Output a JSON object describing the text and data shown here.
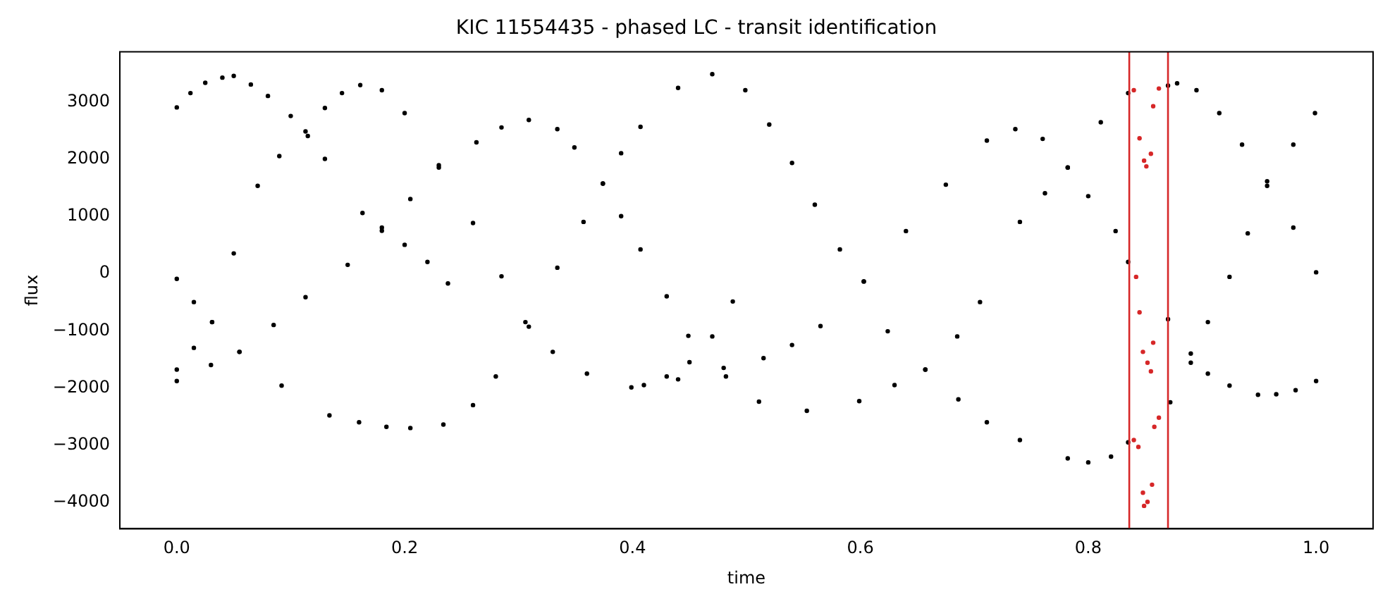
{
  "chart_data": {
    "type": "scatter",
    "title": "KIC 11554435 - phased LC - transit identification",
    "xlabel": "time",
    "ylabel": "flux",
    "xlim": [
      -0.05,
      1.05
    ],
    "ylim": [
      -4460,
      3870
    ],
    "xticks": [
      {
        "value": 0,
        "label": "0.0"
      },
      {
        "value": 0.2,
        "label": "0.2"
      },
      {
        "value": 0.4,
        "label": "0.4"
      },
      {
        "value": 0.6,
        "label": "0.6"
      },
      {
        "value": 0.8,
        "label": "0.8"
      },
      {
        "value": 1,
        "label": "1.0"
      }
    ],
    "yticks": [
      {
        "value": -4000,
        "label": "−4000"
      },
      {
        "value": -3000,
        "label": "−3000"
      },
      {
        "value": -2000,
        "label": "−2000"
      },
      {
        "value": -1000,
        "label": "−1000"
      },
      0,
      1000,
      2000,
      3000
    ],
    "marker": "circle",
    "grid": false,
    "legend": false,
    "ref_lines": [
      {
        "axis": "x",
        "value": 0.836,
        "color": "#d62728"
      },
      {
        "axis": "x",
        "value": 0.87,
        "color": "#d62728"
      }
    ],
    "series": [
      {
        "color": "#000000",
        "x": [
          0,
          0.012,
          0.025,
          0.04,
          0.05,
          0.065,
          0.08,
          0.1,
          0.115,
          0.13,
          0,
          0.015,
          0.031,
          0.05,
          0.071,
          0.09,
          0.113,
          0.13,
          0.145,
          0.161,
          0.18,
          0.2,
          0.23,
          0.26,
          0.285,
          0.306,
          0.33,
          0.36,
          0.399,
          0.44,
          0.48,
          0.515,
          0.54,
          0.565,
          0.603,
          0.64,
          0.675,
          0.711,
          0.736,
          0.76,
          0.782,
          0.8,
          0.824,
          0.835,
          0,
          0.03,
          0.055,
          0.085,
          0.113,
          0.15,
          0.18,
          0.205,
          0.23,
          0.263,
          0.285,
          0.309,
          0.334,
          0.349,
          0.374,
          0.39,
          0.407,
          0.43,
          0.449,
          0.482,
          0.511,
          0.553,
          0.599,
          0.63,
          0.657,
          0.685,
          0.705,
          0.74,
          0.762,
          0.782,
          0.811,
          0.835,
          0.163,
          0.18,
          0.2,
          0.22,
          0.238,
          0,
          0.015,
          0.031,
          0.055,
          0.092,
          0.134,
          0.16,
          0.184,
          0.205,
          0.234,
          0.26,
          0.28,
          0.309,
          0.334,
          0.357,
          0.374,
          0.39,
          0.407,
          0.44,
          0.47,
          0.499,
          0.52,
          0.54,
          0.56,
          0.582,
          0.603,
          0.624,
          0.657,
          0.686,
          0.711,
          0.74,
          0.782,
          0.8,
          0.82,
          0.835,
          0.41,
          0.43,
          0.45,
          0.47,
          0.488,
          0.87,
          0.878,
          0.895,
          0.915,
          0.935,
          0.957,
          0.98,
          1.0,
          0.872,
          0.89,
          0.905,
          0.924,
          0.94,
          0.957,
          0.98,
          0.999,
          0.87,
          0.89,
          0.905,
          0.924,
          0.949,
          0.965,
          0.982,
          1.0
        ],
        "values": [
          2900,
          3150,
          3330,
          3420,
          3450,
          3300,
          3100,
          2750,
          2400,
          2000,
          -1680,
          -1300,
          -850,
          350,
          1530,
          2050,
          2480,
          2890,
          3150,
          3290,
          3200,
          2800,
          1890,
          880,
          -50,
          -850,
          -1370,
          -1750,
          -1990,
          -1850,
          -1650,
          -1480,
          -1250,
          -920,
          -140,
          740,
          1550,
          2320,
          2520,
          2350,
          1850,
          1350,
          740,
          200,
          -1880,
          -1600,
          -1370,
          -900,
          -415,
          150,
          745,
          1300,
          1850,
          2290,
          2550,
          2680,
          2520,
          2200,
          1570,
          1000,
          420,
          -400,
          -1090,
          -1800,
          -2240,
          -2400,
          -2230,
          -1950,
          -1680,
          -1100,
          -500,
          900,
          1400,
          1850,
          2640,
          3150,
          1055,
          800,
          500,
          200,
          -175,
          -95,
          -500,
          -850,
          -1370,
          -1960,
          -2480,
          -2600,
          -2680,
          -2700,
          -2640,
          -2300,
          -1800,
          -930,
          100,
          900,
          1570,
          2100,
          2560,
          3240,
          3480,
          3200,
          2600,
          1930,
          1200,
          420,
          -140,
          -1010,
          -1680,
          -2200,
          -2600,
          -2910,
          -3230,
          -3300,
          -3200,
          -2950,
          -1950,
          -1800,
          -1550,
          -1100,
          -490,
          3280,
          3320,
          3200,
          2800,
          2250,
          1610,
          800,
          20,
          -2250,
          -1560,
          -850,
          -60,
          700,
          1530,
          2250,
          2800,
          -800,
          -1400,
          -1750,
          -1960,
          -2120,
          -2110,
          -2040,
          -1880
        ]
      },
      {
        "color": "#d62728",
        "x": [
          0.84,
          0.862,
          0.857,
          0.845,
          0.849,
          0.855,
          0.851,
          0.842,
          0.845,
          0.857,
          0.848,
          0.852,
          0.855,
          0.858,
          0.862,
          0.84,
          0.844,
          0.848,
          0.856,
          0.849,
          0.852
        ],
        "values": [
          3200,
          3230,
          2920,
          2360,
          1970,
          2090,
          1870,
          -60,
          -680,
          -1210,
          -1370,
          -1560,
          -1710,
          -2680,
          -2520,
          -2910,
          -3030,
          -3830,
          -3690,
          -4060,
          -3990
        ]
      }
    ]
  }
}
